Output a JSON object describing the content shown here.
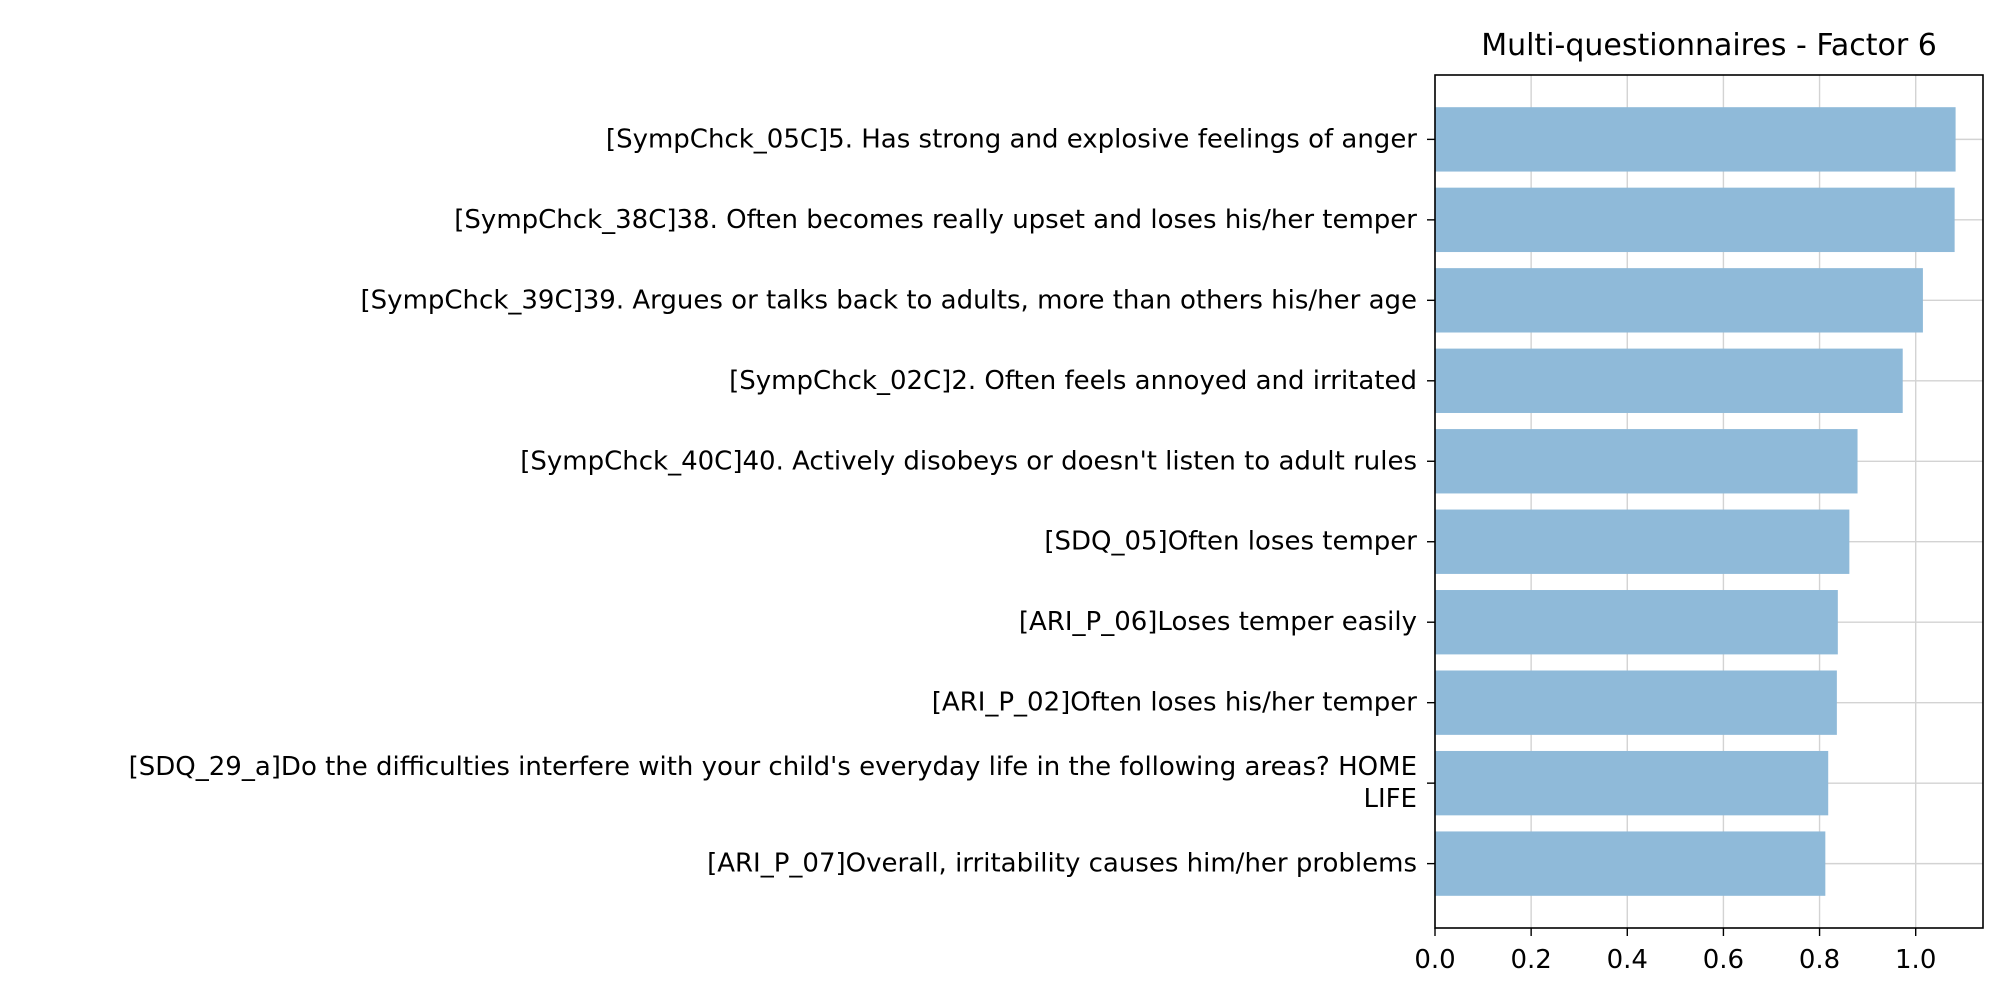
{
  "chart_data": {
    "type": "bar",
    "orientation": "horizontal",
    "title": "Multi-questionnaires - Factor 6",
    "xlabel": "",
    "ylabel": "",
    "categories": [
      [
        "[SympChck_05C]5. Has strong and explosive feelings of anger"
      ],
      [
        "[SympChck_38C]38. Often becomes really upset and loses his/her temper"
      ],
      [
        "[SympChck_39C]39. Argues or talks back to adults, more than others his/her age"
      ],
      [
        "[SympChck_02C]2. Often feels annoyed and irritated"
      ],
      [
        "[SympChck_40C]40. Actively disobeys or doesn't listen to adult rules"
      ],
      [
        "[SDQ_05]Often loses temper"
      ],
      [
        "[ARI_P_06]Loses temper easily"
      ],
      [
        "[ARI_P_02]Often loses his/her temper"
      ],
      [
        "[SDQ_29_a]Do the difficulties interfere with your child's everyday life in the following areas? HOME",
        "LIFE"
      ],
      [
        "[ARI_P_07]Overall, irritability causes him/her problems"
      ]
    ],
    "values": [
      1.083,
      1.081,
      1.015,
      0.973,
      0.879,
      0.862,
      0.838,
      0.836,
      0.818,
      0.812
    ],
    "xlim": [
      0.0,
      1.14
    ],
    "xticks": [
      0.0,
      0.2,
      0.4,
      0.6,
      0.8,
      1.0
    ],
    "xtick_labels": [
      "0.0",
      "0.2",
      "0.4",
      "0.6",
      "0.8",
      "1.0"
    ],
    "grid": true,
    "legend": "none",
    "colors": {
      "bar": "#8fbad9",
      "grid": "#d3d3d3",
      "axis": "#000000"
    }
  }
}
